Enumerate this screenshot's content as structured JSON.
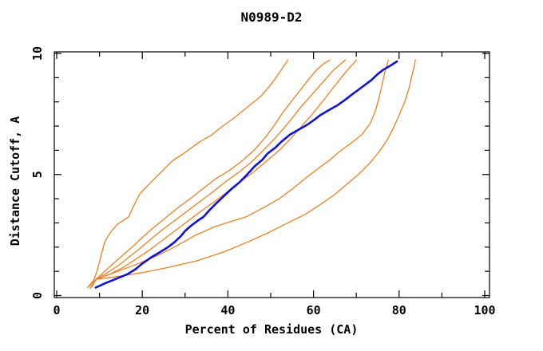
{
  "chart_data": {
    "type": "line",
    "title": "N0989-D2",
    "xlabel": "Percent of Residues (CA)",
    "ylabel": "Distance Cutoff, A",
    "xlim": [
      0,
      100
    ],
    "ylim": [
      0,
      10
    ],
    "x_major_ticks": [
      0,
      20,
      40,
      60,
      80,
      100
    ],
    "x_minor_step": 10,
    "y_major_ticks": [
      0,
      5,
      10
    ],
    "y_minor_step": 1,
    "grid": false,
    "legend": false,
    "frame_color": "#000000",
    "series": [
      {
        "name": "orange-1",
        "color": "#EE8022",
        "width": 1.3,
        "points": [
          [
            7.5,
            0.4
          ],
          [
            8.6,
            0.62
          ],
          [
            9.4,
            1.0
          ],
          [
            10.1,
            1.45
          ],
          [
            10.8,
            1.95
          ],
          [
            11.3,
            2.25
          ],
          [
            12.6,
            2.62
          ],
          [
            14.2,
            2.95
          ],
          [
            16.8,
            3.25
          ],
          [
            18.1,
            3.75
          ],
          [
            19.4,
            4.2
          ],
          [
            21.3,
            4.55
          ],
          [
            24.1,
            5.05
          ],
          [
            26.9,
            5.55
          ],
          [
            29.9,
            5.9
          ],
          [
            33.4,
            6.35
          ],
          [
            36.1,
            6.62
          ],
          [
            38.4,
            6.95
          ],
          [
            41.2,
            7.3
          ],
          [
            44.0,
            7.7
          ],
          [
            47.8,
            8.25
          ],
          [
            50.2,
            8.75
          ],
          [
            52.2,
            9.25
          ],
          [
            54.0,
            9.73
          ]
        ]
      },
      {
        "name": "orange-2",
        "color": "#EE8022",
        "width": 1.3,
        "points": [
          [
            7.2,
            0.33
          ],
          [
            8.3,
            0.52
          ],
          [
            9.1,
            0.66
          ],
          [
            11.2,
            1.0
          ],
          [
            13.4,
            1.35
          ],
          [
            15.8,
            1.72
          ],
          [
            18.2,
            2.1
          ],
          [
            20.3,
            2.45
          ],
          [
            22.6,
            2.8
          ],
          [
            25.2,
            3.18
          ],
          [
            28.1,
            3.6
          ],
          [
            31.2,
            4.0
          ],
          [
            34.2,
            4.42
          ],
          [
            37.1,
            4.82
          ],
          [
            40.2,
            5.15
          ],
          [
            43.2,
            5.55
          ],
          [
            46.1,
            6.0
          ],
          [
            48.6,
            6.5
          ],
          [
            50.7,
            7.0
          ],
          [
            52.6,
            7.5
          ],
          [
            54.6,
            7.97
          ],
          [
            56.6,
            8.42
          ],
          [
            58.6,
            8.87
          ],
          [
            60.6,
            9.3
          ],
          [
            62.4,
            9.58
          ],
          [
            63.8,
            9.73
          ]
        ]
      },
      {
        "name": "orange-3",
        "color": "#EE8022",
        "width": 1.3,
        "points": [
          [
            7.8,
            0.3
          ],
          [
            9.1,
            0.66
          ],
          [
            11.9,
            0.95
          ],
          [
            14.6,
            1.27
          ],
          [
            17.1,
            1.62
          ],
          [
            19.6,
            1.97
          ],
          [
            22.1,
            2.35
          ],
          [
            24.7,
            2.72
          ],
          [
            27.6,
            3.1
          ],
          [
            30.6,
            3.5
          ],
          [
            33.6,
            3.9
          ],
          [
            36.6,
            4.3
          ],
          [
            39.6,
            4.72
          ],
          [
            42.6,
            5.1
          ],
          [
            45.5,
            5.52
          ],
          [
            48.1,
            5.97
          ],
          [
            50.6,
            6.42
          ],
          [
            53.0,
            6.9
          ],
          [
            55.1,
            7.35
          ],
          [
            57.2,
            7.82
          ],
          [
            59.6,
            8.3
          ],
          [
            62.1,
            8.8
          ],
          [
            64.6,
            9.3
          ],
          [
            67.4,
            9.73
          ]
        ]
      },
      {
        "name": "orange-4",
        "color": "#EE8022",
        "width": 1.3,
        "points": [
          [
            8.2,
            0.35
          ],
          [
            9.1,
            0.66
          ],
          [
            12.6,
            0.9
          ],
          [
            15.6,
            1.17
          ],
          [
            18.6,
            1.52
          ],
          [
            21.6,
            1.87
          ],
          [
            24.6,
            2.27
          ],
          [
            27.6,
            2.67
          ],
          [
            30.6,
            3.07
          ],
          [
            33.6,
            3.47
          ],
          [
            36.8,
            3.87
          ],
          [
            40.1,
            4.32
          ],
          [
            43.1,
            4.72
          ],
          [
            46.1,
            5.12
          ],
          [
            49.1,
            5.57
          ],
          [
            52.1,
            6.02
          ],
          [
            54.6,
            6.47
          ],
          [
            57.1,
            6.97
          ],
          [
            59.6,
            7.47
          ],
          [
            61.9,
            7.97
          ],
          [
            64.1,
            8.47
          ],
          [
            66.1,
            8.92
          ],
          [
            68.1,
            9.35
          ],
          [
            70.1,
            9.73
          ]
        ]
      },
      {
        "name": "orange-5",
        "color": "#EE8022",
        "width": 1.3,
        "points": [
          [
            9.1,
            0.66
          ],
          [
            13.5,
            0.95
          ],
          [
            18.5,
            1.28
          ],
          [
            23.5,
            1.65
          ],
          [
            28.0,
            2.05
          ],
          [
            32.5,
            2.5
          ],
          [
            37.0,
            2.85
          ],
          [
            41.5,
            3.1
          ],
          [
            44.2,
            3.25
          ],
          [
            48.0,
            3.6
          ],
          [
            52.0,
            4.0
          ],
          [
            55.4,
            4.45
          ],
          [
            58.5,
            4.9
          ],
          [
            61.5,
            5.3
          ],
          [
            63.8,
            5.6
          ],
          [
            66.3,
            5.98
          ],
          [
            68.8,
            6.3
          ],
          [
            71.3,
            6.65
          ],
          [
            73.2,
            7.1
          ],
          [
            74.4,
            7.6
          ],
          [
            75.3,
            8.15
          ],
          [
            76.0,
            8.7
          ],
          [
            76.6,
            9.2
          ],
          [
            77.5,
            9.73
          ]
        ]
      },
      {
        "name": "orange-6",
        "color": "#EE8022",
        "width": 1.3,
        "points": [
          [
            9.1,
            0.66
          ],
          [
            14.0,
            0.78
          ],
          [
            20.0,
            0.95
          ],
          [
            26.5,
            1.18
          ],
          [
            33.0,
            1.45
          ],
          [
            39.0,
            1.8
          ],
          [
            44.5,
            2.2
          ],
          [
            49.5,
            2.6
          ],
          [
            54.0,
            3.0
          ],
          [
            58.0,
            3.35
          ],
          [
            61.5,
            3.75
          ],
          [
            64.8,
            4.15
          ],
          [
            67.8,
            4.6
          ],
          [
            70.8,
            5.05
          ],
          [
            73.3,
            5.5
          ],
          [
            75.4,
            5.95
          ],
          [
            77.1,
            6.4
          ],
          [
            78.6,
            6.9
          ],
          [
            80.0,
            7.45
          ],
          [
            81.3,
            8.0
          ],
          [
            82.3,
            8.55
          ],
          [
            83.0,
            9.1
          ],
          [
            83.5,
            9.45
          ],
          [
            83.8,
            9.73
          ]
        ]
      },
      {
        "name": "blue",
        "color": "#1012DC",
        "width": 2.6,
        "points": [
          [
            9.1,
            0.33
          ],
          [
            11.5,
            0.52
          ],
          [
            14.0,
            0.7
          ],
          [
            16.5,
            0.88
          ],
          [
            18.5,
            1.1
          ],
          [
            20.0,
            1.32
          ],
          [
            22.0,
            1.57
          ],
          [
            24.0,
            1.78
          ],
          [
            26.0,
            2.0
          ],
          [
            27.5,
            2.2
          ],
          [
            29.0,
            2.45
          ],
          [
            30.0,
            2.67
          ],
          [
            31.5,
            2.9
          ],
          [
            33.0,
            3.1
          ],
          [
            34.3,
            3.25
          ],
          [
            35.8,
            3.55
          ],
          [
            37.5,
            3.85
          ],
          [
            39.2,
            4.13
          ],
          [
            40.8,
            4.4
          ],
          [
            42.7,
            4.68
          ],
          [
            44.5,
            5.0
          ],
          [
            46.3,
            5.35
          ],
          [
            48.0,
            5.6
          ],
          [
            49.3,
            5.87
          ],
          [
            51.0,
            6.1
          ],
          [
            52.6,
            6.37
          ],
          [
            54.5,
            6.65
          ],
          [
            56.5,
            6.85
          ],
          [
            58.5,
            7.05
          ],
          [
            60.5,
            7.3
          ],
          [
            61.4,
            7.43
          ],
          [
            63.5,
            7.65
          ],
          [
            65.5,
            7.85
          ],
          [
            67.5,
            8.1
          ],
          [
            68.8,
            8.28
          ],
          [
            70.5,
            8.5
          ],
          [
            72.0,
            8.7
          ],
          [
            73.5,
            8.9
          ],
          [
            75.0,
            9.15
          ],
          [
            76.5,
            9.35
          ],
          [
            78.0,
            9.5
          ],
          [
            79.5,
            9.67
          ]
        ]
      }
    ]
  }
}
